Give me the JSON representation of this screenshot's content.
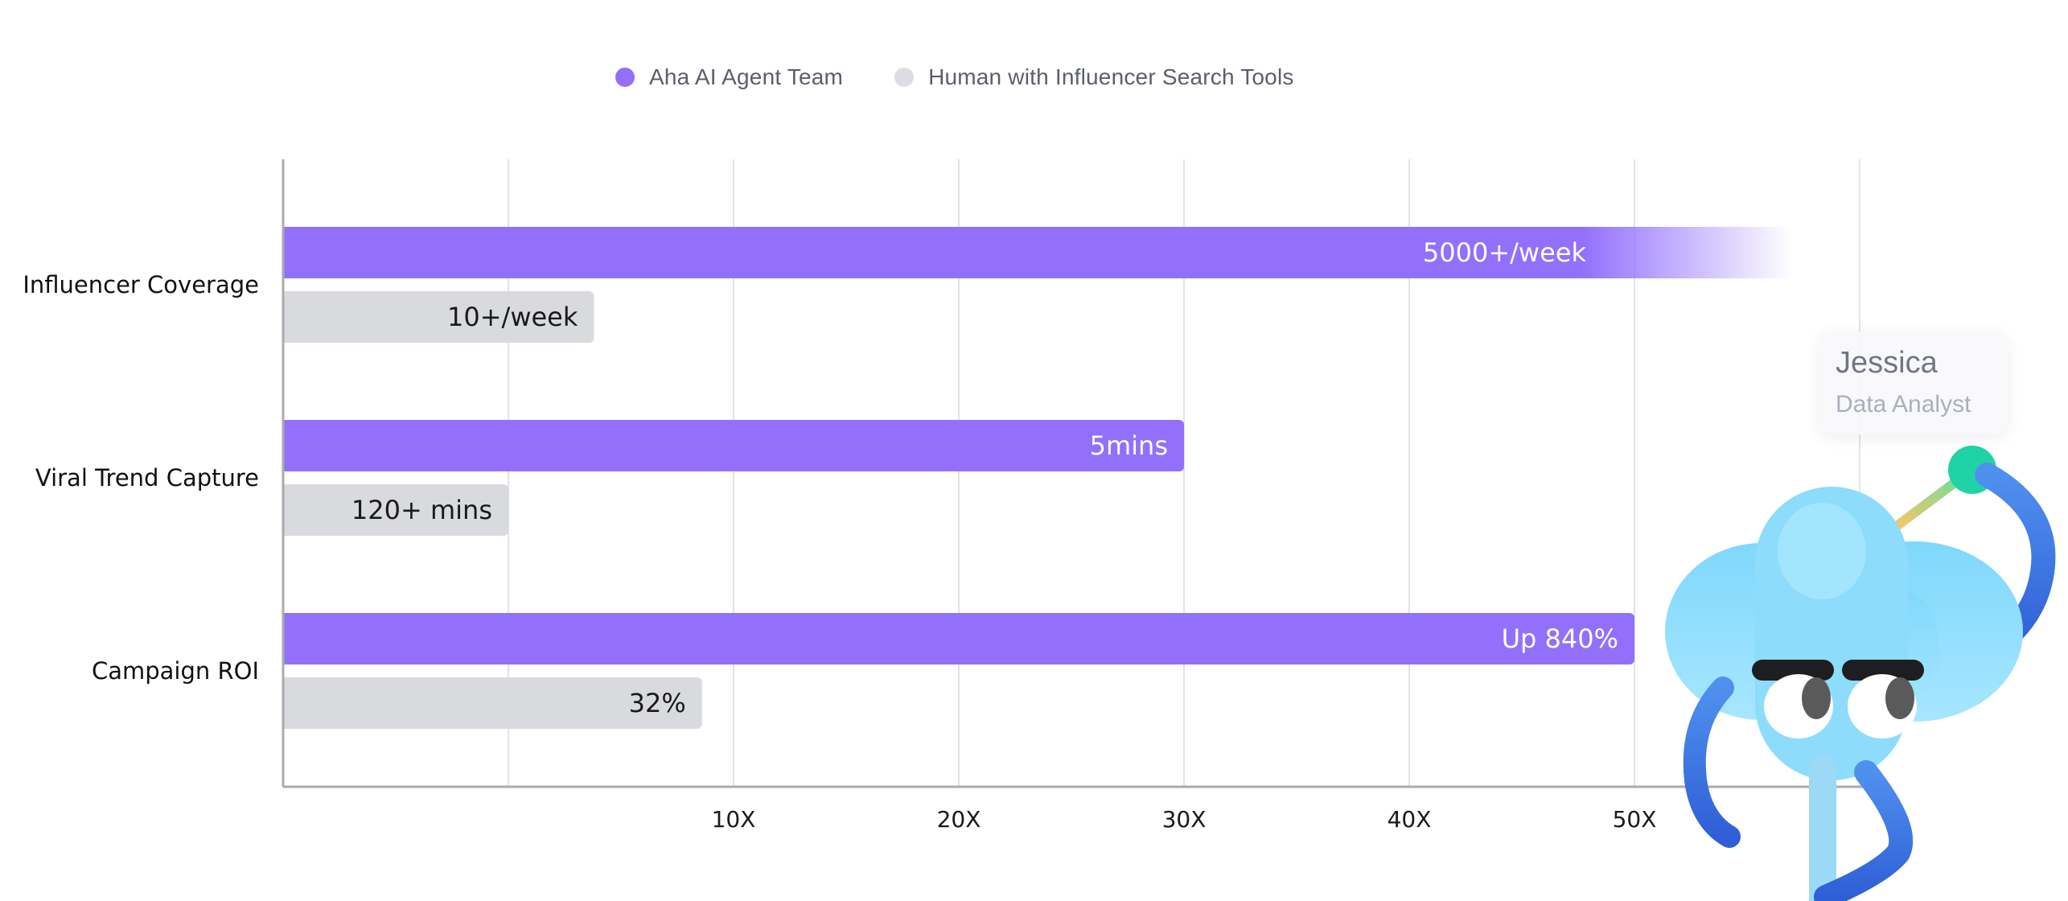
{
  "chart_data": {
    "type": "bar",
    "orientation": "horizontal",
    "categories": [
      "Influencer Coverage",
      "Viral Trend Capture",
      "Campaign ROI"
    ],
    "series": [
      {
        "name": "Aha AI Agent Team",
        "color": "#9270fc",
        "values": [
          57,
          30,
          50
        ],
        "labels": [
          "5000+/week",
          "5mins",
          "Up 840%"
        ]
      },
      {
        "name": "Human with Influencer Search Tools",
        "color": "#d9dade",
        "values": [
          3.8,
          0,
          8.6
        ],
        "labels": [
          "10+/week",
          "120+ mins",
          "32%"
        ]
      }
    ],
    "ticks": [
      "10X",
      "20X",
      "30X",
      "40X",
      "50X"
    ],
    "tick_values": [
      10,
      20,
      30,
      40,
      50
    ],
    "xlim": [
      -10,
      60
    ],
    "grid": true,
    "legend_position": "top-center"
  },
  "mascot": {
    "name": "Jessica",
    "role": "Data Analyst"
  }
}
